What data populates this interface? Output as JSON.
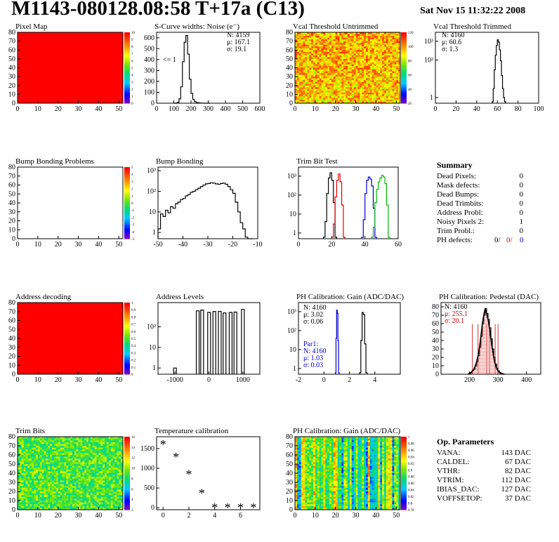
{
  "header": {
    "title": "M1143-080128.08:58 T+17a (C13)",
    "date": "Sat Nov 15 11:32:22 2008"
  },
  "colors": {
    "hist": "#000000",
    "red": "#e00000",
    "blue": "#0000cc",
    "green": "#00bb00",
    "pedestal": "#cc0000"
  },
  "palette_scales": {
    "pixel_map": [
      "0",
      "1",
      "2",
      "3",
      "4",
      "5",
      "6",
      "7",
      "8",
      "9",
      "10"
    ],
    "vcal_untrimmed": [
      "20",
      "40",
      "60",
      "80",
      "100",
      "120"
    ],
    "bump_bonding_problems": [
      "-5",
      "-4",
      "-3",
      "-2",
      "-1",
      "0",
      "1",
      "2",
      "3",
      "4",
      "5"
    ],
    "address_decoding": [
      "0",
      "0.1",
      "0.2",
      "0.3",
      "0.4",
      "0.5",
      "0.6",
      "0.7",
      "0.8",
      "0.9",
      "1"
    ],
    "trim_bits": [
      "2",
      "4",
      "6",
      "8",
      "10",
      "12",
      "14",
      "16"
    ],
    "ph_gain_map": [
      "0.78",
      "0.8",
      "0.82",
      "0.84",
      "0.86",
      "0.88",
      "0.9",
      "0.92",
      "0.94",
      "0.96",
      "0.98",
      "1"
    ]
  },
  "summary": {
    "title": "Summary",
    "rows": [
      {
        "label": "Dead Pixels:",
        "value": "0"
      },
      {
        "label": "Mask defects:",
        "value": "0"
      },
      {
        "label": "Dead Bumps:",
        "value": "0"
      },
      {
        "label": "Dead Trimbits:",
        "value": "0"
      },
      {
        "label": "Address Probl:",
        "value": "0"
      },
      {
        "label": "Noisy Pixels 2:",
        "value": "1"
      },
      {
        "label": "Trim Probl.:",
        "value": "0"
      }
    ],
    "ph_defects": {
      "label": "PH defects:",
      "v1": "0/",
      "v2": "0/",
      "v3": "0"
    }
  },
  "op_params": {
    "title": "Op. Parameters",
    "rows": [
      {
        "label": "VANA:",
        "value": "143 DAC"
      },
      {
        "label": "CALDEL:",
        "value": "67 DAC"
      },
      {
        "label": "VTHR:",
        "value": "82 DAC"
      },
      {
        "label": "VTRIM:",
        "value": "112 DAC"
      },
      {
        "label": "IBIAS_DAC:",
        "value": "127 DAC"
      },
      {
        "label": "VOFFSETOP:",
        "value": "37 DAC"
      }
    ]
  },
  "chart_data": [
    {
      "id": "pixel_map",
      "type": "heatmap",
      "title": "Pixel Map",
      "xlim": [
        0,
        52
      ],
      "ylim": [
        0,
        80
      ],
      "xticks": [
        "0",
        "10",
        "20",
        "30",
        "40",
        "50"
      ],
      "yticks": [
        "0",
        "10",
        "20",
        "30",
        "40",
        "50",
        "60",
        "70",
        "80"
      ],
      "fill": "uniform",
      "value": 10
    },
    {
      "id": "noise",
      "type": "line",
      "title": "S-Curve widths: Noise (e⁻)",
      "xlim": [
        0,
        600
      ],
      "ylim": [
        0,
        650
      ],
      "xticks": [
        "0",
        "100",
        "200",
        "300",
        "400",
        "500",
        "600"
      ],
      "yticks": [
        "0",
        "100",
        "200",
        "300",
        "400",
        "500",
        "600"
      ],
      "stats": [
        "N: 4159",
        "μ: 167.1",
        "σ: 19.1"
      ],
      "annotation": "<= 1",
      "x": [
        100,
        110,
        120,
        130,
        140,
        150,
        160,
        170,
        180,
        190,
        200,
        210,
        220,
        230,
        240,
        250,
        260,
        270,
        280,
        290,
        300
      ],
      "y": [
        0,
        2,
        8,
        40,
        150,
        380,
        560,
        620,
        450,
        220,
        90,
        35,
        14,
        6,
        3,
        2,
        1,
        1,
        0,
        0,
        0
      ]
    },
    {
      "id": "vcal_untrimmed",
      "type": "heatmap",
      "title": "Vcal Threshold Untrimmed",
      "xlim": [
        0,
        52
      ],
      "ylim": [
        0,
        80
      ],
      "xticks": [
        "0",
        "10",
        "20",
        "30",
        "40",
        "50"
      ],
      "yticks": [
        "0",
        "10",
        "20",
        "30",
        "40",
        "50",
        "60",
        "70",
        "80"
      ],
      "fill": "noise",
      "vmin": 50,
      "vmax": 130
    },
    {
      "id": "vcal_trimmed",
      "type": "line",
      "title": "Vcal Threshold Trimmed",
      "log_y": true,
      "xlim": [
        0,
        100
      ],
      "ylim": [
        0.5,
        3000
      ],
      "xticks": [
        "0",
        "20",
        "40",
        "60",
        "80",
        "100"
      ],
      "yticks": [
        "1",
        "10²",
        "10³"
      ],
      "stats": [
        "N: 4160",
        "μ: 60.6",
        "σ:  1.3"
      ],
      "x": [
        55,
        56,
        57,
        58,
        59,
        60,
        61,
        62,
        63,
        64,
        65,
        66,
        67
      ],
      "y": [
        0.6,
        3,
        30,
        180,
        600,
        1200,
        900,
        350,
        90,
        15,
        3,
        1,
        0.6
      ]
    },
    {
      "id": "bump_bonding_problems",
      "type": "heatmap",
      "title": "Bump Bonding Problems",
      "xlim": [
        0,
        52
      ],
      "ylim": [
        0,
        80
      ],
      "xticks": [
        "0",
        "10",
        "20",
        "30",
        "40",
        "50"
      ],
      "yticks": [
        "0",
        "10",
        "20",
        "30",
        "40",
        "50",
        "60",
        "70",
        "80"
      ],
      "fill": "empty"
    },
    {
      "id": "bump_bonding",
      "type": "line",
      "title": "Bump Bonding",
      "log_y": true,
      "xlim": [
        -50,
        -10
      ],
      "ylim": [
        0.5,
        1500
      ],
      "xticks": [
        "-50",
        "-40",
        "-30",
        "-20",
        "-10"
      ],
      "yticks": [
        "1",
        "10",
        "10²",
        "10³"
      ],
      "x": [
        -50,
        -49,
        -48,
        -47,
        -46,
        -45,
        -44,
        -43,
        -42,
        -41,
        -40,
        -39,
        -38,
        -37,
        -36,
        -35,
        -34,
        -33,
        -32,
        -31,
        -30,
        -29,
        -28,
        -27,
        -26,
        -25,
        -24,
        -23,
        -22,
        -21,
        -20,
        -19,
        -18,
        -17,
        -16,
        -15,
        -14,
        -13
      ],
      "y": [
        1.5,
        8,
        6,
        12,
        9,
        18,
        15,
        25,
        30,
        40,
        45,
        60,
        70,
        90,
        100,
        120,
        140,
        170,
        200,
        230,
        240,
        260,
        250,
        230,
        220,
        240,
        250,
        220,
        170,
        120,
        80,
        30,
        10,
        3,
        1.5,
        0.6,
        0.5,
        0.5
      ]
    },
    {
      "id": "trim_bit_test",
      "type": "line",
      "title": "Trim Bit Test",
      "log_y": true,
      "xlim": [
        0,
        60
      ],
      "ylim": [
        0.5,
        3000
      ],
      "xticks": [
        "0",
        "20",
        "40",
        "60"
      ],
      "yticks": [
        "1",
        "10",
        "10²",
        "10³"
      ],
      "series": [
        {
          "color": "black",
          "x": [
            15,
            16,
            17,
            18,
            19,
            20,
            21,
            22
          ],
          "y": [
            0.6,
            4,
            120,
            800,
            1500,
            600,
            40,
            0.6
          ]
        },
        {
          "color": "red",
          "x": [
            20,
            21,
            22,
            23,
            24,
            25,
            26,
            27
          ],
          "y": [
            0.6,
            3,
            80,
            600,
            1300,
            500,
            30,
            0.6
          ]
        },
        {
          "color": "blue",
          "x": [
            38,
            39,
            40,
            41,
            42,
            43,
            44,
            45,
            46
          ],
          "y": [
            0.6,
            5,
            120,
            600,
            900,
            700,
            300,
            20,
            0.6
          ]
        },
        {
          "color": "green",
          "x": [
            44,
            45,
            46,
            47,
            48,
            49,
            50,
            51,
            52,
            53,
            54
          ],
          "y": [
            0.6,
            2,
            40,
            200,
            500,
            800,
            1100,
            900,
            400,
            30,
            0.6
          ]
        }
      ]
    },
    {
      "id": "address_decoding",
      "type": "heatmap",
      "title": "Address decoding",
      "xlim": [
        0,
        52
      ],
      "ylim": [
        0,
        80
      ],
      "xticks": [
        "0",
        "10",
        "20",
        "30",
        "40",
        "50"
      ],
      "yticks": [
        "0",
        "10",
        "20",
        "30",
        "40",
        "50",
        "60",
        "70",
        "80"
      ],
      "fill": "uniform",
      "value": 1
    },
    {
      "id": "address_levels",
      "type": "bar",
      "title": "Address Levels",
      "log_y": true,
      "xlim": [
        -1500,
        1500
      ],
      "ylim": [
        0.5,
        1500
      ],
      "xticks": [
        "-1000",
        "0",
        "1000"
      ],
      "yticks": [
        "1",
        "10",
        "10²"
      ],
      "x": [
        -1000,
        -330,
        -200,
        5,
        160,
        320,
        460,
        640,
        780,
        1000
      ],
      "y": [
        1,
        600,
        650,
        500,
        550,
        560,
        470,
        500,
        520,
        700
      ]
    },
    {
      "id": "ph_gain",
      "type": "line",
      "title": "PH Calibration: Gain (ADC/DAC)",
      "log_y": true,
      "xlim": [
        -2,
        6
      ],
      "ylim": [
        0.5,
        3000
      ],
      "xticks": [
        "-2",
        "0",
        "2",
        "4"
      ],
      "yticks": [
        "1",
        "10",
        "10²",
        "10³"
      ],
      "stats": [
        "N: 4160",
        "μ: 3.02",
        "σ: 0.06"
      ],
      "stats2": [
        "Par1:",
        "N: 4160",
        "μ: 1.03",
        "σ: 0.03"
      ],
      "series": [
        {
          "color": "black",
          "x": [
            2.8,
            2.9,
            3.0,
            3.1,
            3.2,
            3.3
          ],
          "y": [
            0.6,
            30,
            900,
            700,
            20,
            0.6
          ]
        },
        {
          "color": "blue",
          "x": [
            0.9,
            0.95,
            1.0,
            1.05,
            1.1,
            1.15
          ],
          "y": [
            0.6,
            40,
            1200,
            800,
            30,
            0.6
          ]
        }
      ]
    },
    {
      "id": "ph_pedestal",
      "type": "line",
      "title": "PH Calibration: Pedestal (DAC)",
      "xlim": [
        100,
        450
      ],
      "ylim": [
        0,
        85
      ],
      "xticks": [
        "200",
        "300",
        "400"
      ],
      "yticks": [
        "0",
        "10",
        "20",
        "30",
        "40",
        "50",
        "60",
        "70",
        "80"
      ],
      "stats": [
        "N: 4160",
        "μ: 255.1",
        "σ: 20.1"
      ],
      "x": [
        195,
        200,
        205,
        210,
        215,
        220,
        225,
        230,
        235,
        240,
        245,
        250,
        255,
        260,
        265,
        270,
        275,
        280,
        285,
        290,
        295,
        300,
        305,
        310,
        315,
        320
      ],
      "y": [
        0,
        1,
        2,
        4,
        6,
        10,
        15,
        22,
        32,
        45,
        60,
        70,
        78,
        72,
        65,
        55,
        42,
        30,
        20,
        12,
        7,
        4,
        2,
        1,
        0.5,
        0
      ],
      "markers": [
        210,
        230,
        260,
        270,
        290,
        300
      ]
    },
    {
      "id": "trim_bits",
      "type": "heatmap",
      "title": "Trim Bits",
      "xlim": [
        0,
        52
      ],
      "ylim": [
        0,
        80
      ],
      "xticks": [
        "0",
        "10",
        "20",
        "30",
        "40",
        "50"
      ],
      "yticks": [
        "0",
        "10",
        "20",
        "30",
        "40",
        "50",
        "60",
        "70",
        "80"
      ],
      "fill": "noise",
      "vmin": 1,
      "vmax": 16
    },
    {
      "id": "temperature",
      "type": "scatter",
      "title": "Temperature calibration",
      "xlim": [
        -0.5,
        7.5
      ],
      "ylim": [
        -50,
        1800
      ],
      "xticks": [
        "0",
        "2",
        "4",
        "6"
      ],
      "yticks": [
        "0",
        "500",
        "1000",
        "1500"
      ],
      "x": [
        0,
        1,
        2,
        3,
        4,
        5,
        6,
        7
      ],
      "y": [
        1600,
        1280,
        850,
        370,
        0,
        0,
        0,
        0
      ]
    },
    {
      "id": "ph_gain_map",
      "type": "heatmap",
      "title": "PH Calibration: Gain (ADC/DAC)",
      "xlim": [
        0,
        52
      ],
      "ylim": [
        0,
        80
      ],
      "xticks": [
        "0",
        "10",
        "20",
        "30",
        "40",
        "50"
      ],
      "yticks": [
        "0",
        "10",
        "20",
        "30",
        "40",
        "50",
        "60",
        "70",
        "80"
      ],
      "fill": "columns",
      "vmin": 0.78,
      "vmax": 1
    }
  ]
}
